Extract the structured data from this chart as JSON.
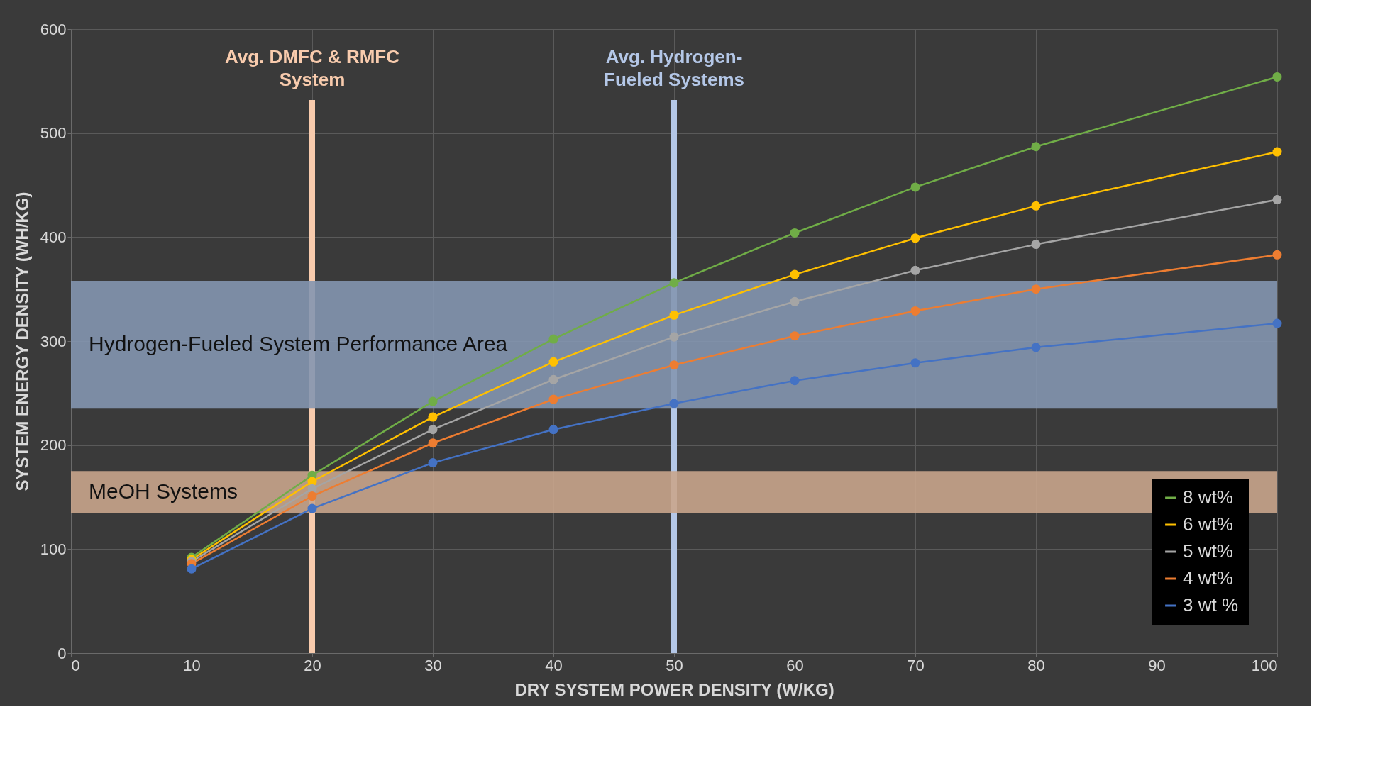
{
  "chart_data": {
    "type": "line",
    "xlabel": "DRY SYSTEM POWER DENSITY (W/KG)",
    "ylabel": "SYSTEM ENERGY DENSITY (WH/KG)",
    "x": [
      10,
      20,
      30,
      40,
      50,
      60,
      70,
      80,
      100
    ],
    "series": [
      {
        "name": "8 wt%",
        "color": "#70ad47",
        "values": [
          92,
          171,
          242,
          302,
          356,
          404,
          448,
          487,
          554
        ]
      },
      {
        "name": "6 wt%",
        "color": "#ffc000",
        "values": [
          90,
          165,
          227,
          280,
          325,
          364,
          399,
          430,
          482
        ]
      },
      {
        "name": "5 wt%",
        "color": "#a5a5a5",
        "values": [
          88,
          158,
          215,
          263,
          304,
          338,
          368,
          393,
          436
        ]
      },
      {
        "name": "4 wt%",
        "color": "#ed7d31",
        "values": [
          86,
          151,
          202,
          244,
          277,
          305,
          329,
          350,
          383
        ]
      },
      {
        "name": "3 wt %",
        "color": "#4472c4",
        "values": [
          81,
          139,
          183,
          215,
          240,
          262,
          279,
          294,
          317
        ]
      }
    ],
    "xlim": [
      0,
      100
    ],
    "xticks": [
      0,
      10,
      20,
      30,
      40,
      50,
      60,
      70,
      80,
      90,
      100
    ],
    "ylim": [
      0,
      600
    ],
    "yticks": [
      0,
      100,
      200,
      300,
      400,
      500,
      600
    ],
    "ref_lines": [
      {
        "axis": "x",
        "value": 20,
        "label": "Avg. DMFC & RMFC System",
        "color": "#f8cbad"
      },
      {
        "axis": "x",
        "value": 50,
        "label": "Avg. Hydrogen-Fueled Systems",
        "color": "#b4c7e7"
      }
    ],
    "bands": [
      {
        "axis": "y",
        "from": 235,
        "to": 358,
        "label": "Hydrogen-Fueled System Performance Area",
        "color": "#8496b0"
      },
      {
        "axis": "y",
        "from": 135,
        "to": 175,
        "label": "MeOH Systems",
        "color": "#c9a58c"
      }
    ],
    "grid": true,
    "legend": "bottom right",
    "marker": "circle",
    "line_style": "solid"
  }
}
